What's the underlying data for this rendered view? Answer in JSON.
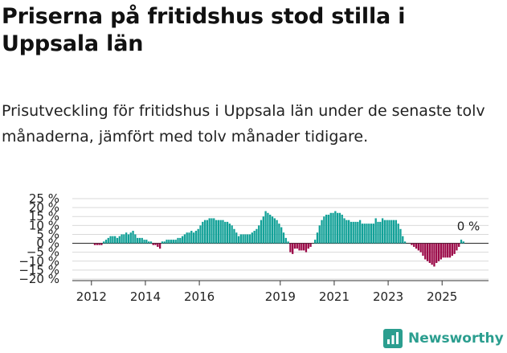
{
  "title": "Priserna på fritidshus stod stilla i Uppsala län",
  "subtitle": "Prisutveckling för fritidshus i Uppsala län under de senaste tolv månaderna, jämfört med tolv månader tidigare.",
  "brand": {
    "name": "Newsworthy",
    "icon": "newsworthy-logo-icon"
  },
  "colors": {
    "positive": "#13a198",
    "negative": "#9b0a48",
    "grid": "#d9d9d9",
    "axis": "#333333",
    "brand": "#2b9e8f"
  },
  "chart_data": {
    "type": "bar",
    "title": "",
    "xlabel": "",
    "ylabel": "",
    "ylim": [
      -20,
      25
    ],
    "yticks": [
      -20,
      -15,
      -10,
      -5,
      0,
      5,
      10,
      15,
      20,
      25
    ],
    "ytick_labels": [
      "−20 %",
      "−15 %",
      "−10 %",
      "−5 %",
      "0 %",
      "5 %",
      "10 %",
      "15 %",
      "20 %",
      "25 %"
    ],
    "xticks": [
      2012,
      2014,
      2016,
      2019,
      2021,
      2023,
      2025
    ],
    "x_start": "2011-12",
    "grid": true,
    "last_value_label": "0 %",
    "series": [
      {
        "values": [
          0,
          0,
          -1,
          -1,
          -1,
          -1,
          1,
          2,
          3,
          4,
          4,
          4,
          3,
          4,
          5,
          5,
          6,
          5,
          6,
          7,
          5,
          3,
          3,
          3,
          2,
          2,
          1,
          1,
          -1,
          -1,
          -2,
          -3,
          1,
          1,
          2,
          2,
          2,
          2,
          2,
          3,
          3,
          4,
          5,
          6,
          6,
          7,
          6,
          7,
          8,
          10,
          12,
          13,
          13,
          14,
          14,
          14,
          13,
          13,
          13,
          13,
          12,
          12,
          11,
          10,
          8,
          6,
          4,
          5,
          5,
          5,
          5,
          5,
          6,
          7,
          8,
          10,
          13,
          15,
          18,
          17,
          16,
          15,
          14,
          13,
          11,
          9,
          6,
          3,
          1,
          -5,
          -6,
          -3,
          -3,
          -4,
          -4,
          -4,
          -5,
          -3,
          -2,
          0,
          2,
          6,
          10,
          13,
          15,
          16,
          16,
          17,
          17,
          18,
          17,
          17,
          16,
          14,
          13,
          13,
          12,
          12,
          12,
          12,
          13,
          11,
          11,
          11,
          11,
          11,
          11,
          14,
          12,
          12,
          14,
          13,
          13,
          13,
          13,
          13,
          13,
          11,
          8,
          4,
          1,
          0,
          0,
          -1,
          -2,
          -3,
          -4,
          -5,
          -7,
          -9,
          -10,
          -11,
          -12,
          -13,
          -11,
          -10,
          -9,
          -8,
          -8,
          -8,
          -8,
          -7,
          -6,
          -4,
          -2,
          2,
          1,
          0
        ]
      }
    ]
  }
}
